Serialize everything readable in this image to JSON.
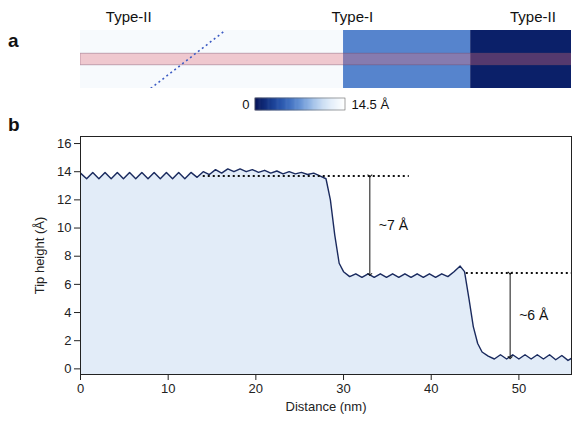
{
  "chart_data": [
    {
      "panel": "a",
      "type": "heatmap",
      "xlim": [
        0,
        56
      ],
      "tick_labels": false,
      "regions": [
        {
          "label": "Type-II",
          "x0": 0,
          "x1": 30,
          "height": 13.8,
          "label_x": 5.5
        },
        {
          "label": "Type-I",
          "x0": 30,
          "x1": 44.5,
          "height": 6.6,
          "label_x": 31
        },
        {
          "label": "Type-II",
          "x0": 44.5,
          "x1": 56,
          "height": 0.8,
          "label_x": 51.6
        }
      ],
      "dotted_line_x": [
        8,
        16.5
      ],
      "colorbar": {
        "range": [
          0,
          14.5
        ],
        "ticks": [
          0,
          {
            "value": 14.5,
            "label": "14.5 Å"
          }
        ]
      }
    },
    {
      "panel": "b",
      "type": "line",
      "x_label": "Distance (nm)",
      "y_label": "Tip height (Å)",
      "xlim": [
        0,
        56
      ],
      "xticks": [
        0,
        10,
        20,
        30,
        40,
        50
      ],
      "ylim": [
        -0.4,
        16.5
      ],
      "yticks": [
        0,
        2,
        4,
        6,
        8,
        10,
        12,
        14,
        16
      ],
      "color": "#1a2a5e",
      "x": [
        0,
        0.7,
        1.4,
        2.1,
        2.8,
        3.5,
        4.2,
        4.9,
        5.6,
        6.3,
        7,
        7.7,
        8.4,
        9.1,
        9.8,
        10.5,
        11.2,
        11.9,
        12.6,
        13.3,
        14,
        14.7,
        15.4,
        16.1,
        16.8,
        17.5,
        18.2,
        18.9,
        19.6,
        20.3,
        21,
        21.7,
        22.4,
        23.1,
        23.8,
        24.5,
        25.2,
        25.9,
        26.6,
        27.3,
        28,
        28.5,
        29,
        29.5,
        30,
        30.7,
        31.4,
        32.1,
        32.8,
        33.5,
        34.2,
        34.9,
        35.6,
        36.3,
        37,
        37.7,
        38.4,
        39.1,
        39.8,
        40.5,
        41.2,
        41.9,
        42.6,
        43.3,
        43.8,
        44.3,
        44.8,
        45.3,
        45.8,
        46.5,
        47.2,
        47.9,
        48.6,
        49.3,
        50,
        50.7,
        51.4,
        52.1,
        52.8,
        53.5,
        54.2,
        54.9,
        55.6,
        56
      ],
      "values": [
        13.9,
        13.5,
        13.95,
        13.5,
        13.95,
        13.5,
        13.95,
        13.5,
        13.95,
        13.5,
        13.95,
        13.5,
        13.95,
        13.5,
        13.95,
        13.5,
        13.95,
        13.5,
        13.95,
        13.6,
        14.0,
        13.8,
        14.15,
        13.9,
        14.2,
        14.0,
        14.2,
        14.0,
        14.15,
        13.95,
        14.1,
        13.9,
        14.05,
        13.85,
        14.0,
        13.85,
        13.95,
        13.8,
        13.9,
        13.7,
        13.5,
        12.0,
        9.5,
        7.5,
        6.9,
        6.55,
        6.75,
        6.5,
        6.75,
        6.5,
        6.75,
        6.5,
        6.75,
        6.5,
        6.75,
        6.5,
        6.75,
        6.5,
        6.75,
        6.5,
        6.75,
        6.55,
        6.9,
        7.3,
        6.9,
        5.0,
        3.0,
        1.8,
        1.2,
        0.9,
        0.7,
        1.0,
        0.7,
        1.0,
        0.7,
        1.0,
        0.7,
        1.0,
        0.7,
        1.0,
        0.65,
        0.95,
        0.6,
        0.75
      ],
      "annotations": [
        {
          "text": "~7 Å",
          "x": 33,
          "y1": 13.7,
          "y2": 6.7,
          "line_x1": 14,
          "line_x2": 37.5
        },
        {
          "text": "~6 Å",
          "x": 49,
          "y1": 6.8,
          "y2": 0.8,
          "line_x1": 44,
          "line_x2": 56
        }
      ]
    }
  ]
}
